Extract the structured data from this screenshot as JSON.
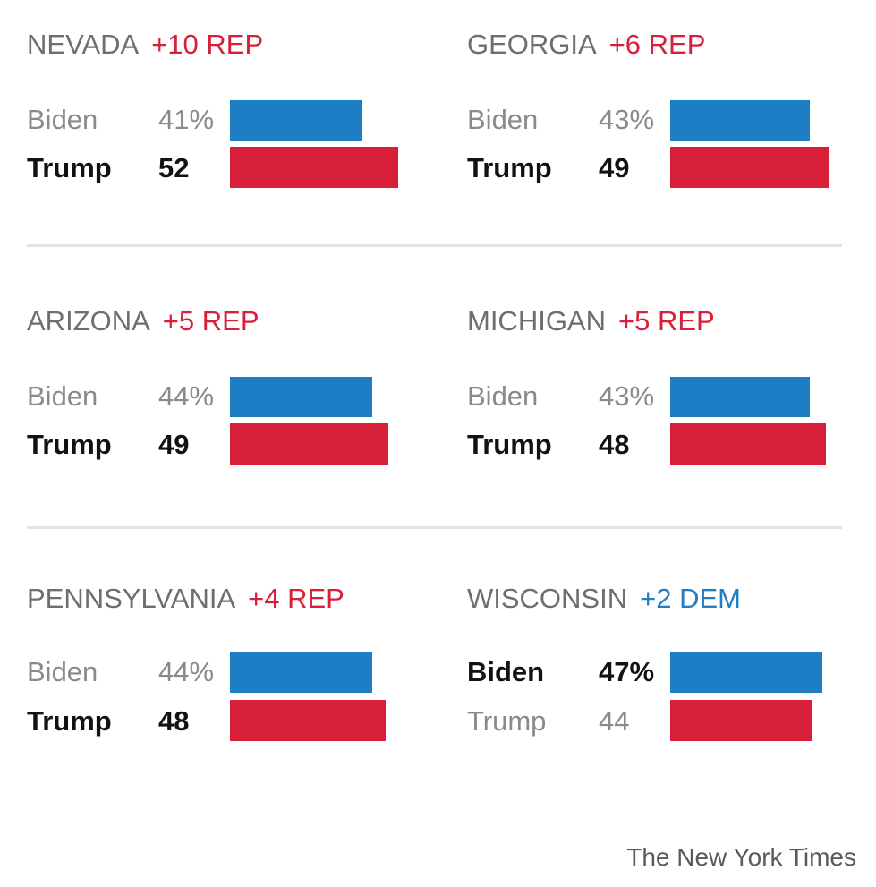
{
  "colors": {
    "rep": "#d71f39",
    "dem": "#1f7fc2",
    "biden_bar": "#1c7ec4",
    "trump_bar": "#d71f39"
  },
  "credit": "The New York Times",
  "chart_data": {
    "type": "bar",
    "orientation": "horizontal",
    "panels": [
      {
        "state": "NEVADA",
        "margin": "+10 REP",
        "party": "rep",
        "rows": [
          {
            "candidate": "Biden",
            "label": "41%",
            "value": 41,
            "winner": false
          },
          {
            "candidate": "Trump",
            "label": "52",
            "value": 52,
            "winner": true
          }
        ]
      },
      {
        "state": "GEORGIA",
        "margin": "+6 REP",
        "party": "rep",
        "rows": [
          {
            "candidate": "Biden",
            "label": "43%",
            "value": 43,
            "winner": false
          },
          {
            "candidate": "Trump",
            "label": "49",
            "value": 49,
            "winner": true
          }
        ]
      },
      {
        "state": "ARIZONA",
        "margin": "+5 REP",
        "party": "rep",
        "rows": [
          {
            "candidate": "Biden",
            "label": "44%",
            "value": 44,
            "winner": false
          },
          {
            "candidate": "Trump",
            "label": "49",
            "value": 49,
            "winner": true
          }
        ]
      },
      {
        "state": "MICHIGAN",
        "margin": "+5 REP",
        "party": "rep",
        "rows": [
          {
            "candidate": "Biden",
            "label": "43%",
            "value": 43,
            "winner": false
          },
          {
            "candidate": "Trump",
            "label": "48",
            "value": 48,
            "winner": true
          }
        ]
      },
      {
        "state": "PENNSYLVANIA",
        "margin": "+4 REP",
        "party": "rep",
        "rows": [
          {
            "candidate": "Biden",
            "label": "44%",
            "value": 44,
            "winner": false
          },
          {
            "candidate": "Trump",
            "label": "48",
            "value": 48,
            "winner": true
          }
        ]
      },
      {
        "state": "WISCONSIN",
        "margin": "+2 DEM",
        "party": "dem",
        "rows": [
          {
            "candidate": "Biden",
            "label": "47%",
            "value": 47,
            "winner": true
          },
          {
            "candidate": "Trump",
            "label": "44",
            "value": 44,
            "winner": false
          }
        ]
      }
    ]
  }
}
